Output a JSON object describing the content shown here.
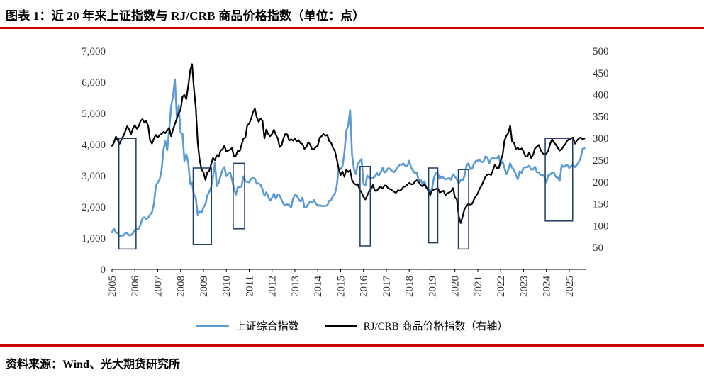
{
  "header": {
    "title": "图表 1：近 20 年来上证指数与 RJ/CRB 商品价格指数（单位：点）"
  },
  "footer": {
    "source": "资料来源：Wind、光大期货研究所"
  },
  "colors": {
    "accent_red": "#CC0000",
    "sse_blue": "#5B9BD5",
    "crb_black": "#000000",
    "box_navy": "#1F3864",
    "axis_text": "#333333"
  },
  "legend": {
    "items": [
      {
        "label": "上证综合指数",
        "color": "#5B9BD5"
      },
      {
        "label": "RJ/CRB 商品价格指数（右轴）",
        "color": "#000000"
      }
    ]
  },
  "chart_data": {
    "type": "line",
    "title": "近 20 年来上证指数与 RJ/CRB 商品价格指数",
    "unit": "点",
    "x_start_year": 2005,
    "x_step_months": 1,
    "x_tick_labels": [
      "2005",
      "2006",
      "2007",
      "2008",
      "2009",
      "2010",
      "2011",
      "2012",
      "2013",
      "2014",
      "2015",
      "2016",
      "2017",
      "2018",
      "2019",
      "2020",
      "2021",
      "2022",
      "2023",
      "2024",
      "2025"
    ],
    "left_axis": {
      "min": 0,
      "max": 7000,
      "ticks": [
        {
          "v": 0,
          "label": "0"
        },
        {
          "v": 1000,
          "label": "1,000"
        },
        {
          "v": 2000,
          "label": "2,000"
        },
        {
          "v": 3000,
          "label": "3,000"
        },
        {
          "v": 4000,
          "label": "4,000"
        },
        {
          "v": 5000,
          "label": "5,000"
        },
        {
          "v": 6000,
          "label": "6,000"
        },
        {
          "v": 7000,
          "label": "7,000"
        }
      ]
    },
    "right_axis": {
      "min": 0,
      "max": 500,
      "ticks": [
        {
          "v": 50,
          "label": "50"
        },
        {
          "v": 100,
          "label": "100"
        },
        {
          "v": 150,
          "label": "150"
        },
        {
          "v": 200,
          "label": "200"
        },
        {
          "v": 250,
          "label": "250"
        },
        {
          "v": 300,
          "label": "300"
        },
        {
          "v": 350,
          "label": "350"
        },
        {
          "v": 400,
          "label": "400"
        },
        {
          "v": 450,
          "label": "450"
        },
        {
          "v": 500,
          "label": "500"
        }
      ]
    },
    "series": [
      {
        "name": "上证综合指数",
        "axis": "left",
        "color": "#5B9BD5",
        "width": 2.6,
        "values": [
          1192,
          1306,
          1181,
          1159,
          1060,
          1081,
          1083,
          1163,
          1155,
          1092,
          1099,
          1161,
          1258,
          1299,
          1298,
          1440,
          1641,
          1672,
          1613,
          1658,
          1752,
          1837,
          2099,
          2675,
          2786,
          2881,
          3183,
          3841,
          4109,
          3820,
          4471,
          5218,
          5552,
          6092,
          4871,
          5262,
          4383,
          4348,
          3473,
          3693,
          3433,
          2736,
          2775,
          2397,
          2294,
          1729,
          1871,
          1821,
          1991,
          2083,
          2373,
          2478,
          2633,
          2959,
          3412,
          2668,
          2779,
          2995,
          3195,
          3277,
          2989,
          3052,
          3109,
          2871,
          2592,
          2398,
          2638,
          2639,
          2656,
          2979,
          2820,
          2808,
          2790,
          2905,
          2928,
          2911,
          2743,
          2762,
          2701,
          2567,
          2359,
          2468,
          2333,
          2199,
          2293,
          2428,
          2263,
          2396,
          2372,
          2225,
          2104,
          2048,
          2086,
          2068,
          1980,
          2269,
          2385,
          2366,
          2237,
          2178,
          2301,
          1979,
          1994,
          2098,
          2175,
          2141,
          2221,
          2116,
          2033,
          2056,
          2033,
          2026,
          2039,
          2048,
          2202,
          2217,
          2364,
          2420,
          2683,
          3235,
          3210,
          3310,
          3748,
          4442,
          4612,
          5106,
          3664,
          3206,
          3053,
          3383,
          3445,
          3539,
          2738,
          2688,
          3004,
          2938,
          2917,
          2930,
          2979,
          3085,
          3005,
          3100,
          3250,
          3104,
          3159,
          3242,
          3223,
          3155,
          3117,
          3192,
          3273,
          3361,
          3349,
          3393,
          3317,
          3307,
          3481,
          3259,
          3169,
          3082,
          3095,
          2847,
          2876,
          2725,
          2821,
          2603,
          2588,
          2494,
          2585,
          2941,
          3091,
          3078,
          2899,
          2979,
          2933,
          2886,
          2905,
          2929,
          2872,
          3050,
          2977,
          2880,
          2750,
          2860,
          2852,
          2985,
          3310,
          3396,
          3218,
          3225,
          3392,
          3473,
          3483,
          3509,
          3442,
          3447,
          3615,
          3591,
          3397,
          3544,
          3568,
          3547,
          3564,
          3640,
          3361,
          3462,
          3252,
          3047,
          3186,
          3399,
          3253,
          3202,
          3024,
          2893,
          3151,
          3089,
          3256,
          3280,
          3273,
          3323,
          3205,
          3202,
          3291,
          3120,
          3110,
          3019,
          3030,
          2975,
          2789,
          3015,
          3041,
          3105,
          3087,
          2967,
          2938,
          2842,
          3336,
          3280,
          3326,
          3352,
          3251,
          3321,
          3336,
          3279,
          3347,
          3444,
          3573,
          3858,
          3880
        ]
      },
      {
        "name": "RJ/CRB 商品价格指数（右轴）",
        "axis": "right",
        "color": "#000000",
        "width": 2.2,
        "values": [
          283,
          290,
          304,
          296,
          288,
          298,
          306,
          316,
          328,
          320,
          310,
          323,
          330,
          322,
          328,
          340,
          344,
          336,
          340,
          328,
          295,
          288,
          300,
          308,
          302,
          308,
          310,
          315,
          312,
          318,
          324,
          305,
          320,
          333,
          345,
          358,
          365,
          395,
          400,
          390,
          420,
          455,
          470,
          415,
          370,
          290,
          250,
          229,
          222,
          205,
          222,
          225,
          240,
          255,
          250,
          262,
          258,
          272,
          275,
          283,
          270,
          272,
          274,
          278,
          258,
          260,
          272,
          270,
          285,
          300,
          302,
          330,
          334,
          345,
          360,
          368,
          348,
          338,
          345,
          340,
          300,
          320,
          310,
          305,
          310,
          320,
          308,
          300,
          280,
          284,
          300,
          310,
          309,
          295,
          298,
          295,
          300,
          292,
          296,
          289,
          287,
          276,
          280,
          291,
          286,
          275,
          275,
          280,
          283,
          302,
          305,
          310,
          306,
          308,
          294,
          290,
          278,
          271,
          252,
          230,
          216,
          224,
          212,
          229,
          223,
          227,
          204,
          197,
          194,
          195,
          183,
          176,
          166,
          160,
          170,
          179,
          184,
          193,
          180,
          180,
          186,
          189,
          185,
          192,
          192,
          185,
          184,
          181,
          178,
          175,
          181,
          180,
          183,
          189,
          190,
          194,
          198,
          195,
          195,
          201,
          204,
          200,
          193,
          190,
          195,
          188,
          180,
          170,
          180,
          183,
          184,
          186,
          176,
          178,
          180,
          170,
          174,
          176,
          179,
          186,
          165,
          160,
          122,
          106,
          120,
          138,
          144,
          150,
          148,
          150,
          160,
          168,
          174,
          185,
          192,
          202,
          212,
          217,
          218,
          216,
          228,
          240,
          232,
          232,
          248,
          262,
          295,
          306,
          312,
          329,
          293,
          290,
          276,
          278,
          274,
          277,
          270,
          259,
          258,
          268,
          255,
          262,
          277,
          281,
          285,
          273,
          266,
          263,
          265,
          272,
          288,
          298,
          290,
          286,
          278,
          272,
          275,
          282,
          287,
          295,
          298,
          300,
          302,
          288,
          295,
          300,
          302,
          298,
          300
        ]
      }
    ],
    "highlight_boxes": [
      {
        "x0": 2005.3,
        "x1": 2006.05,
        "y0": 650,
        "y1": 4200
      },
      {
        "x0": 2008.55,
        "x1": 2009.35,
        "y0": 800,
        "y1": 3250
      },
      {
        "x0": 2010.3,
        "x1": 2010.8,
        "y0": 1300,
        "y1": 3400
      },
      {
        "x0": 2015.85,
        "x1": 2016.3,
        "y0": 750,
        "y1": 3300
      },
      {
        "x0": 2018.85,
        "x1": 2019.25,
        "y0": 850,
        "y1": 3250
      },
      {
        "x0": 2020.15,
        "x1": 2020.6,
        "y0": 650,
        "y1": 3200
      },
      {
        "x0": 2023.95,
        "x1": 2025.15,
        "y0": 1550,
        "y1": 4200
      }
    ]
  }
}
